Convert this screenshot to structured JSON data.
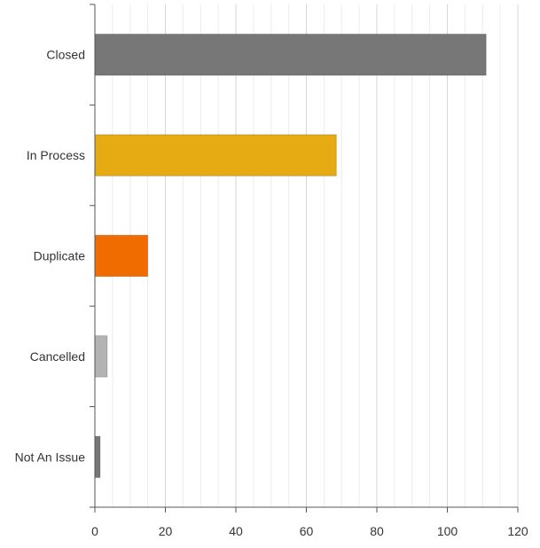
{
  "chart_data": {
    "type": "bar",
    "orientation": "horizontal",
    "title": "",
    "xlabel": "",
    "ylabel": "",
    "categories": [
      "Closed",
      "In Process",
      "Duplicate",
      "Cancelled",
      "Not An Issue"
    ],
    "values": [
      111,
      68.5,
      15,
      3.5,
      1.5
    ],
    "bar_colors": [
      "#777777",
      "#e6ab12",
      "#f06b00",
      "#b3b3b3",
      "#777777"
    ],
    "xlim": [
      0,
      120
    ],
    "x_ticks": [
      0,
      20,
      40,
      60,
      80,
      100,
      120
    ],
    "minor_grid_step": 5,
    "grid": true,
    "legend": "none"
  }
}
